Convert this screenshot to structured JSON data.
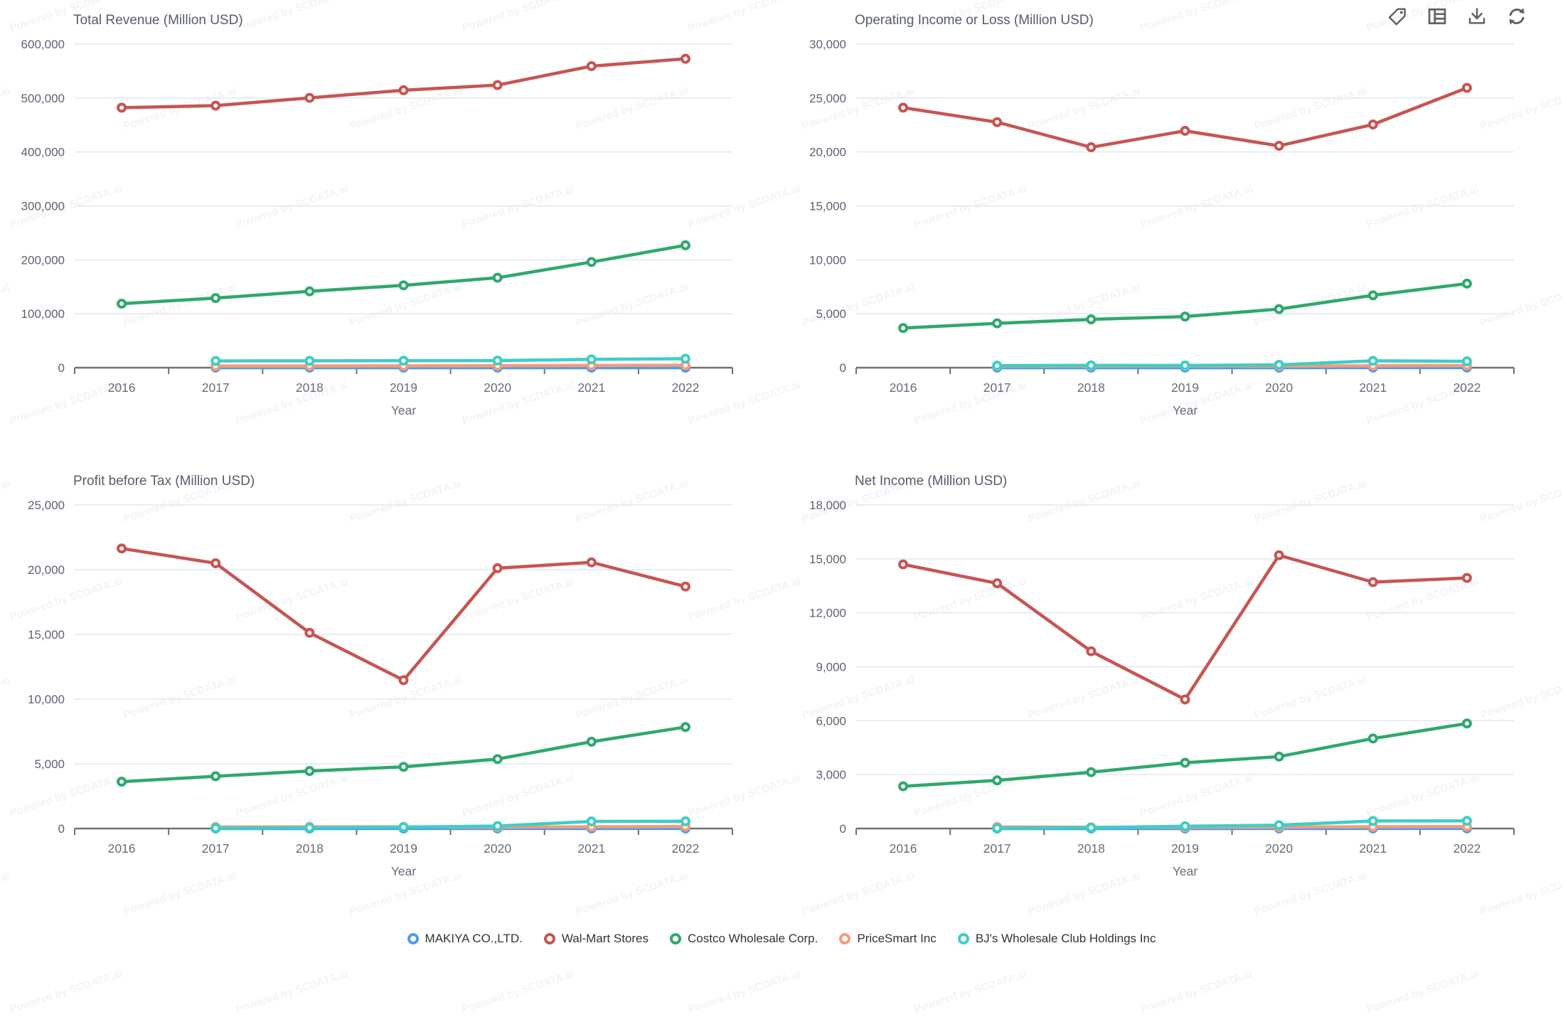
{
  "watermark": {
    "text": "Powered by SCDATA.ai"
  },
  "toolbar": {
    "buttons": [
      {
        "icon": "tag-icon"
      },
      {
        "icon": "table-icon"
      },
      {
        "icon": "download-icon"
      },
      {
        "icon": "refresh-icon"
      }
    ]
  },
  "colors": {
    "grid": "#e2e6f3",
    "axis": "#6e7073",
    "y_tick_text": "#5c6270",
    "x_tick_text": "#666c77",
    "title_text": "#555c6b"
  },
  "legend": {
    "items": [
      {
        "label": "MAKIYA CO.,LTD.",
        "color": "#4B9BF0"
      },
      {
        "label": "Wal-Mart Stores",
        "color": "#C75452"
      },
      {
        "label": "Costco Wholesale Corp.",
        "color": "#2FA86C"
      },
      {
        "label": "PriceSmart Inc",
        "color": "#F39C78"
      },
      {
        "label": "BJ's Wholesale Club Holdings Inc",
        "color": "#3FCDC7"
      }
    ]
  },
  "chart_data": [
    {
      "type": "line",
      "title": "Total Revenue (Million USD)",
      "xlabel": "Year",
      "categories": [
        "2016",
        "2017",
        "2018",
        "2019",
        "2020",
        "2021",
        "2022"
      ],
      "y_ticks": [
        0,
        100000,
        200000,
        300000,
        400000,
        500000,
        600000
      ],
      "ylim": [
        0,
        600000
      ],
      "grid": true,
      "legend_position": "bottom-shared",
      "series": [
        {
          "name": "MAKIYA CO.,LTD.",
          "color": "#4B9BF0",
          "values": [
            null,
            64,
            66,
            68,
            70,
            72,
            74
          ]
        },
        {
          "name": "Wal-Mart Stores",
          "color": "#C75452",
          "values": [
            482130,
            485873,
            500343,
            514405,
            523964,
            559151,
            572754
          ]
        },
        {
          "name": "Costco Wholesale Corp.",
          "color": "#2FA86C",
          "values": [
            118719,
            129025,
            141576,
            152703,
            166761,
            195929,
            226954
          ]
        },
        {
          "name": "PriceSmart Inc",
          "color": "#F39C78",
          "values": [
            null,
            2997,
            3206,
            3329,
            3617,
            4080,
            4407
          ]
        },
        {
          "name": "BJ's Wholesale Club Holdings Inc",
          "color": "#3FCDC7",
          "values": [
            null,
            12495,
            12754,
            13007,
            13191,
            15430,
            16667
          ]
        }
      ]
    },
    {
      "type": "line",
      "title": "Operating Income or Loss (Million USD)",
      "xlabel": "Year",
      "categories": [
        "2016",
        "2017",
        "2018",
        "2019",
        "2020",
        "2021",
        "2022"
      ],
      "y_ticks": [
        0,
        5000,
        10000,
        15000,
        20000,
        25000,
        30000
      ],
      "ylim": [
        0,
        30000
      ],
      "grid": true,
      "legend_position": "bottom-shared",
      "series": [
        {
          "name": "MAKIYA CO.,LTD.",
          "color": "#4B9BF0",
          "values": [
            null,
            3,
            3,
            4,
            4,
            5,
            5
          ]
        },
        {
          "name": "Wal-Mart Stores",
          "color": "#C75452",
          "values": [
            24105,
            22764,
            20437,
            21957,
            20568,
            22548,
            25942
          ]
        },
        {
          "name": "Costco Wholesale Corp.",
          "color": "#2FA86C",
          "values": [
            3672,
            4111,
            4480,
            4737,
            5435,
            6708,
            7793
          ]
        },
        {
          "name": "PriceSmart Inc",
          "color": "#F39C78",
          "values": [
            null,
            134,
            148,
            155,
            148,
            174,
            196
          ]
        },
        {
          "name": "BJ's Wholesale Club Holdings Inc",
          "color": "#3FCDC7",
          "values": [
            null,
            191,
            217,
            203,
            267,
            637,
            593
          ]
        }
      ]
    },
    {
      "type": "line",
      "title": "Profit before Tax (Million USD)",
      "xlabel": "Year",
      "categories": [
        "2016",
        "2017",
        "2018",
        "2019",
        "2020",
        "2021",
        "2022"
      ],
      "y_ticks": [
        0,
        5000,
        10000,
        15000,
        20000,
        25000
      ],
      "ylim": [
        0,
        25000
      ],
      "grid": true,
      "legend_position": "bottom-shared",
      "series": [
        {
          "name": "MAKIYA CO.,LTD.",
          "color": "#4B9BF0",
          "values": [
            null,
            3,
            3,
            4,
            4,
            5,
            5
          ]
        },
        {
          "name": "Wal-Mart Stores",
          "color": "#C75452",
          "values": [
            21638,
            20497,
            15123,
            11460,
            20116,
            20564,
            18696
          ]
        },
        {
          "name": "Costco Wholesale Corp.",
          "color": "#2FA86C",
          "values": [
            3619,
            4039,
            4442,
            4765,
            5367,
            6708,
            7840
          ]
        },
        {
          "name": "PriceSmart Inc",
          "color": "#F39C78",
          "values": [
            null,
            122,
            129,
            128,
            106,
            133,
            158
          ]
        },
        {
          "name": "BJ's Wholesale Club Holdings Inc",
          "color": "#3FCDC7",
          "values": [
            null,
            28,
            60,
            110,
            190,
            552,
            560
          ]
        }
      ]
    },
    {
      "type": "line",
      "title": "Net Income (Million USD)",
      "xlabel": "Year",
      "categories": [
        "2016",
        "2017",
        "2018",
        "2019",
        "2020",
        "2021",
        "2022"
      ],
      "y_ticks": [
        0,
        3000,
        6000,
        9000,
        12000,
        15000,
        18000
      ],
      "ylim": [
        0,
        18000
      ],
      "grid": true,
      "legend_position": "bottom-shared",
      "series": [
        {
          "name": "MAKIYA CO.,LTD.",
          "color": "#4B9BF0",
          "values": [
            null,
            2,
            2,
            2,
            3,
            3,
            3
          ]
        },
        {
          "name": "Wal-Mart Stores",
          "color": "#C75452",
          "values": [
            14694,
            13643,
            9862,
            7179,
            15201,
            13706,
            13940
          ]
        },
        {
          "name": "Costco Wholesale Corp.",
          "color": "#2FA86C",
          "values": [
            2350,
            2679,
            3134,
            3659,
            4002,
            5007,
            5844
          ]
        },
        {
          "name": "PriceSmart Inc",
          "color": "#F39C78",
          "values": [
            null,
            90,
            72,
            73,
            78,
            98,
            109
          ]
        },
        {
          "name": "BJ's Wholesale Club Holdings Inc",
          "color": "#3FCDC7",
          "values": [
            null,
            22,
            50,
            127,
            187,
            421,
            426
          ]
        }
      ]
    }
  ]
}
